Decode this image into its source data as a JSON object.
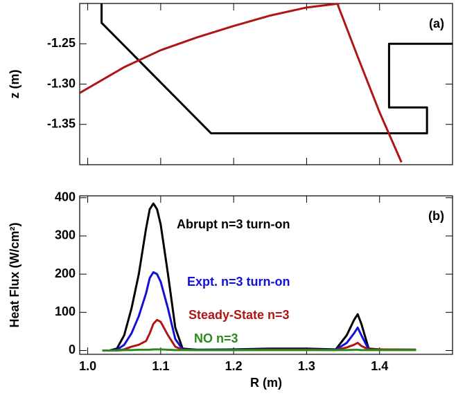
{
  "chart_data": [
    {
      "type": "line",
      "annotation": "(a)",
      "ylabel": "z (m)",
      "xlim": [
        0.989,
        1.5
      ],
      "ylim": [
        -1.4,
        -1.2
      ],
      "xticks": [
        {
          "value": 1.0,
          "label": "1.0"
        },
        1.1,
        1.2,
        1.3,
        1.4
      ],
      "yticks": [
        -1.25,
        {
          "value": -1.3,
          "label": "-1.30"
        },
        -1.35
      ],
      "series": [
        {
          "color": "#000000",
          "x": [
            1.019,
            1.019,
            1.169,
            1.465,
            1.465,
            1.413,
            1.413,
            1.5
          ],
          "values": [
            -1.2,
            -1.224,
            -1.361,
            -1.361,
            -1.329,
            -1.329,
            -1.25,
            -1.25
          ]
        },
        {
          "color": "#b01515",
          "x": [
            0.989,
            1.05,
            1.1,
            1.15,
            1.2,
            1.25,
            1.3,
            1.345
          ],
          "values": [
            -1.311,
            -1.279,
            -1.258,
            -1.242,
            -1.228,
            -1.215,
            -1.205,
            -1.2
          ]
        },
        {
          "color": "#b01515",
          "x": [
            1.342,
            1.37,
            1.4,
            1.43
          ],
          "values": [
            -1.2,
            -1.266,
            -1.335,
            -1.397
          ]
        }
      ]
    },
    {
      "type": "line",
      "annotation": "(b)",
      "xlabel": "R (m)",
      "ylabel": "Heat Flux (W/cm²)",
      "xlim": [
        0.989,
        1.5
      ],
      "ylim": [
        -10,
        405
      ],
      "xticks": [
        {
          "value": 1.0,
          "label": "1.0"
        },
        1.1,
        1.2,
        1.3,
        1.4
      ],
      "yticks": [
        0,
        100,
        200,
        300,
        400
      ],
      "x": [
        1.02,
        1.03,
        1.04,
        1.05,
        1.06,
        1.07,
        1.08,
        1.085,
        1.09,
        1.095,
        1.1,
        1.11,
        1.12,
        1.13,
        1.15,
        1.2,
        1.25,
        1.3,
        1.34,
        1.355,
        1.365,
        1.37,
        1.375,
        1.385,
        1.4,
        1.45
      ],
      "series": [
        {
          "name": "Abrupt n=3 turn-on",
          "color": "#000000",
          "values": [
            0,
            0,
            5,
            40,
            110,
            200,
            320,
            370,
            385,
            370,
            330,
            200,
            60,
            5,
            2,
            3,
            5,
            5,
            3,
            40,
            80,
            95,
            70,
            5,
            3,
            2
          ]
        },
        {
          "name": "Expt. n=3 turn-on",
          "color": "#1010d8",
          "values": [
            0,
            0,
            2,
            15,
            45,
            90,
            150,
            190,
            205,
            200,
            180,
            110,
            30,
            3,
            2,
            2,
            3,
            3,
            2,
            20,
            45,
            60,
            40,
            3,
            2,
            2
          ]
        },
        {
          "name": "Steady-State n=3",
          "color": "#b01515",
          "values": [
            0,
            0,
            0,
            3,
            10,
            15,
            25,
            45,
            70,
            80,
            75,
            40,
            10,
            2,
            1,
            1,
            2,
            2,
            1,
            8,
            15,
            20,
            12,
            3,
            3,
            2
          ]
        },
        {
          "name": "NO n=3",
          "color": "#2a8a1a",
          "values": [
            0,
            0,
            0,
            1,
            1,
            2,
            2,
            2,
            3,
            3,
            3,
            2,
            1,
            1,
            1,
            1,
            1,
            1,
            1,
            1,
            2,
            2,
            1,
            1,
            1,
            1
          ]
        }
      ]
    }
  ]
}
